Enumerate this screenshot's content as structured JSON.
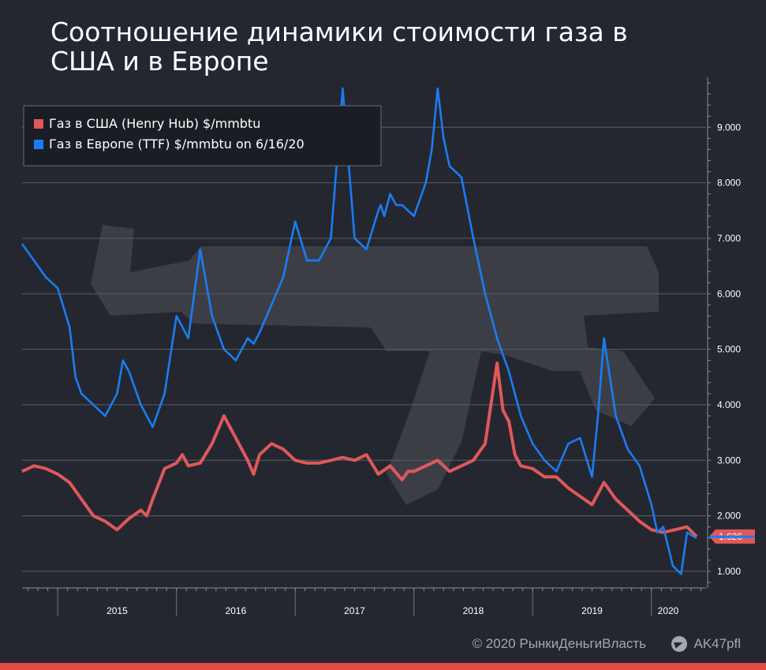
{
  "title": "Соотношение динамики стоимости газа в США и в Европе",
  "footer": {
    "copyright": "© 2020  РынкиДеньгиВласть",
    "telegram_handle": "AK47pfl",
    "telegram_icon": "telegram-icon"
  },
  "colors": {
    "background": "#242730",
    "us_series": "#e0585a",
    "eu_series": "#1a7cf2",
    "grid": "#5c6068",
    "bottom_bar": "#e24a4a"
  },
  "chart_data": {
    "type": "line",
    "title": "Соотношение динамики стоимости газа в США и в Европе",
    "xlabel": "",
    "ylabel": "",
    "x_range": [
      2014.7,
      2020.46
    ],
    "ylim": [
      0.7,
      9.9
    ],
    "y_axis_side": "right",
    "y_ticks": [
      "1.000",
      "2.000",
      "3.000",
      "4.000",
      "5.000",
      "6.000",
      "7.000",
      "8.000",
      "9.000"
    ],
    "x_ticks": [
      "2015",
      "2016",
      "2017",
      "2018",
      "2019",
      "2020"
    ],
    "grid": true,
    "legend_position": "top-left",
    "last_value_label": "1.626",
    "series": [
      {
        "name": "Газ в США (Henry Hub) $/mmbtu",
        "color": "#e0585a",
        "x": [
          2014.7,
          2014.8,
          2014.9,
          2015.0,
          2015.1,
          2015.2,
          2015.3,
          2015.4,
          2015.5,
          2015.6,
          2015.7,
          2015.75,
          2015.8,
          2015.9,
          2016.0,
          2016.05,
          2016.1,
          2016.2,
          2016.3,
          2016.4,
          2016.5,
          2016.6,
          2016.65,
          2016.7,
          2016.8,
          2016.9,
          2017.0,
          2017.1,
          2017.2,
          2017.3,
          2017.4,
          2017.5,
          2017.6,
          2017.7,
          2017.8,
          2017.9,
          2017.95,
          2018.0,
          2018.1,
          2018.2,
          2018.3,
          2018.4,
          2018.5,
          2018.6,
          2018.7,
          2018.75,
          2018.8,
          2018.85,
          2018.9,
          2019.0,
          2019.1,
          2019.2,
          2019.3,
          2019.4,
          2019.5,
          2019.6,
          2019.7,
          2019.8,
          2019.9,
          2020.0,
          2020.1,
          2020.2,
          2020.3,
          2020.38
        ],
        "values": [
          2.8,
          2.9,
          2.85,
          2.75,
          2.6,
          2.3,
          2.0,
          1.9,
          1.75,
          1.95,
          2.1,
          2.0,
          2.3,
          2.85,
          2.95,
          3.1,
          2.9,
          2.95,
          3.3,
          3.8,
          3.4,
          3.0,
          2.75,
          3.1,
          3.3,
          3.2,
          3.0,
          2.95,
          2.95,
          3.0,
          3.05,
          3.0,
          3.1,
          2.75,
          2.9,
          2.65,
          2.8,
          2.8,
          2.9,
          3.0,
          2.8,
          2.9,
          3.0,
          3.3,
          4.75,
          3.9,
          3.7,
          3.1,
          2.9,
          2.85,
          2.7,
          2.7,
          2.5,
          2.35,
          2.2,
          2.6,
          2.3,
          2.1,
          1.9,
          1.75,
          1.7,
          1.75,
          1.8,
          1.626
        ]
      },
      {
        "name": "Газ в Европе (TTF) $/mmbtu on 6/16/20",
        "color": "#1a7cf2",
        "x": [
          2014.7,
          2014.8,
          2014.9,
          2015.0,
          2015.1,
          2015.15,
          2015.2,
          2015.3,
          2015.4,
          2015.5,
          2015.55,
          2015.6,
          2015.7,
          2015.8,
          2015.9,
          2016.0,
          2016.1,
          2016.2,
          2016.3,
          2016.4,
          2016.5,
          2016.6,
          2016.65,
          2016.7,
          2016.8,
          2016.9,
          2017.0,
          2017.1,
          2017.2,
          2017.3,
          2017.4,
          2017.5,
          2017.6,
          2017.7,
          2017.72,
          2017.75,
          2017.8,
          2017.85,
          2017.9,
          2018.0,
          2018.1,
          2018.15,
          2018.2,
          2018.25,
          2018.3,
          2018.4,
          2018.5,
          2018.6,
          2018.7,
          2018.8,
          2018.9,
          2019.0,
          2019.1,
          2019.2,
          2019.3,
          2019.4,
          2019.5,
          2019.55,
          2019.6,
          2019.65,
          2019.7,
          2019.8,
          2019.9,
          2020.0,
          2020.05,
          2020.1,
          2020.18,
          2020.25,
          2020.3,
          2020.38
        ],
        "values": [
          6.9,
          6.6,
          6.3,
          6.1,
          5.4,
          4.5,
          4.2,
          4.0,
          3.8,
          4.2,
          4.8,
          4.6,
          4.0,
          3.6,
          4.2,
          5.6,
          5.2,
          6.8,
          5.6,
          5.0,
          4.8,
          5.2,
          5.1,
          5.3,
          5.8,
          6.3,
          7.3,
          6.6,
          6.6,
          7.0,
          9.7,
          7.0,
          6.8,
          7.5,
          7.6,
          7.4,
          7.8,
          7.6,
          7.6,
          7.4,
          8.0,
          8.6,
          9.7,
          8.8,
          8.3,
          8.1,
          7.0,
          6.0,
          5.2,
          4.6,
          3.8,
          3.3,
          3.0,
          2.8,
          3.3,
          3.4,
          2.7,
          3.8,
          5.2,
          4.5,
          3.8,
          3.2,
          2.9,
          2.2,
          1.7,
          1.8,
          1.1,
          0.95,
          1.7,
          1.6
        ]
      }
    ]
  }
}
